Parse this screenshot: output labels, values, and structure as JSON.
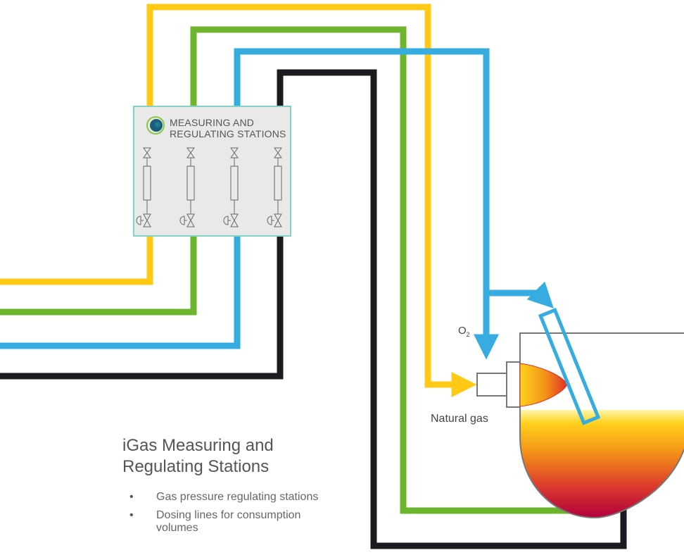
{
  "station": {
    "title_line1": "MEASURING AND",
    "title_line2": "REGULATING STATIONS",
    "logo_icon": "igas-logo-icon",
    "valve_icons": [
      "manual-valve-icon",
      "flow-meter-icon",
      "control-valve-icon"
    ]
  },
  "labels": {
    "oxygen": "O",
    "oxygen_sub": "2",
    "natural_gas": "Natural gas"
  },
  "info": {
    "heading_line1": "iGas Measuring and",
    "heading_line2": "Regulating Stations",
    "bullets": [
      "Gas pressure regulating stations",
      "Dosing lines for consumption volumes"
    ]
  },
  "colors": {
    "natural_gas_line": "#ffc915",
    "green_line": "#6cb52d",
    "oxygen_line": "#36ace0",
    "black_line": "#1b1a1f",
    "station_border": "#7fd2c4",
    "station_fill": "#e9e9e9"
  }
}
